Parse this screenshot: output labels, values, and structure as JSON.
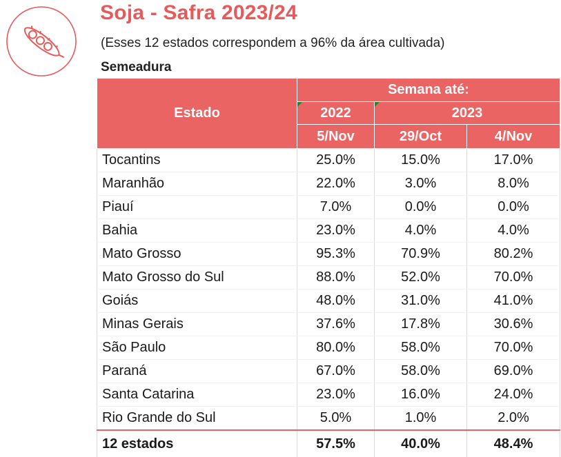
{
  "logo": {
    "icon": "soybean-pod-icon",
    "color": "#e55b5b"
  },
  "header": {
    "title": "Soja - Safra 2023/24",
    "subtitle": "(Esses 12 estados correspondem a 96% da área cultivada)",
    "section": "Semeadura"
  },
  "table": {
    "col_state": "Estado",
    "group": "Semana até:",
    "year_a": "2022",
    "year_b": "2023",
    "weeks": [
      "5/Nov",
      "29/Oct",
      "4/Nov"
    ],
    "rows": [
      {
        "state": "Tocantins",
        "v": [
          "25.0%",
          "15.0%",
          "17.0%"
        ]
      },
      {
        "state": "Maranhão",
        "v": [
          "22.0%",
          "3.0%",
          "8.0%"
        ]
      },
      {
        "state": "Piauí",
        "v": [
          "7.0%",
          "0.0%",
          "0.0%"
        ]
      },
      {
        "state": "Bahia",
        "v": [
          "23.0%",
          "4.0%",
          "4.0%"
        ]
      },
      {
        "state": "Mato Grosso",
        "v": [
          "95.3%",
          "70.9%",
          "80.2%"
        ]
      },
      {
        "state": "Mato Grosso do Sul",
        "v": [
          "88.0%",
          "52.0%",
          "70.0%"
        ]
      },
      {
        "state": "Goiás",
        "v": [
          "48.0%",
          "31.0%",
          "41.0%"
        ]
      },
      {
        "state": "Minas Gerais",
        "v": [
          "37.6%",
          "17.8%",
          "30.6%"
        ]
      },
      {
        "state": "São Paulo",
        "v": [
          "80.0%",
          "58.0%",
          "70.0%"
        ]
      },
      {
        "state": "Paraná",
        "v": [
          "67.0%",
          "58.0%",
          "69.0%"
        ]
      },
      {
        "state": "Santa Catarina",
        "v": [
          "23.0%",
          "16.0%",
          "24.0%"
        ]
      },
      {
        "state": "Rio Grande do Sul",
        "v": [
          "5.0%",
          "1.0%",
          "2.0%"
        ]
      }
    ],
    "total": {
      "state": "12 estados",
      "v": [
        "57.5%",
        "40.0%",
        "48.4%"
      ]
    }
  },
  "colors": {
    "header_bg": "#ea6464",
    "accent": "#e55b5b"
  }
}
